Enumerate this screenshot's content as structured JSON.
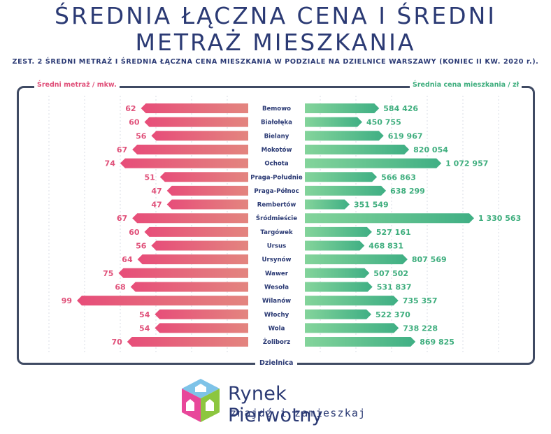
{
  "title_line1": "ŚREDNIA ŁĄCZNA CENA I ŚREDNI",
  "title_line2": "METRAŻ MIESZKANIA",
  "subtitle": "ZEST. 2 ŚREDNI METRAŻ I ŚREDNIA ŁĄCZNA CENA MIESZKANIA W PODZIALE NA DZIELNICE WARSZAWY (KONIEC II KW. 2020 r.).",
  "logo": {
    "name": "Rynek Pierwotny",
    "tagline": "znajdź i zamieszkaj"
  },
  "colors": {
    "area_bar_start": "#e74d79",
    "area_bar_end": "#e3857f",
    "price_bar_start": "#84d49b",
    "price_bar_end": "#3faf84",
    "area_label": "#e0517a",
    "price_label": "#3fae7e",
    "text": "#2b3a74",
    "frame": "#3f4a63"
  },
  "chart_data": {
    "type": "bar",
    "orientation": "horizontal-diverging",
    "left_axis_label": "Średni metraż / mkw.",
    "right_axis_label": "Średnia cena mieszkania / zł",
    "bottom_axis_label": "Dzielnica",
    "grid": true,
    "categories": [
      "Bemowo",
      "Białołęka",
      "Bielany",
      "Mokotów",
      "Ochota",
      "Praga-Południe",
      "Praga-Północ",
      "Rembertów",
      "Śródmieście",
      "Targówek",
      "Ursus",
      "Ursynów",
      "Wawer",
      "Wesoła",
      "Wilanów",
      "Włochy",
      "Wola",
      "Żoliborz"
    ],
    "series": [
      {
        "name": "Średni metraż / mkw.",
        "values": [
          62,
          60,
          56,
          67,
          74,
          51,
          47,
          47,
          67,
          60,
          56,
          64,
          75,
          68,
          99,
          54,
          54,
          70
        ],
        "labels": [
          "62",
          "60",
          "56",
          "67",
          "74",
          "51",
          "47",
          "47",
          "67",
          "60",
          "56",
          "64",
          "75",
          "68",
          "99",
          "54",
          "54",
          "70"
        ]
      },
      {
        "name": "Średnia cena mieszkania / zł",
        "values": [
          584426,
          450755,
          619967,
          820054,
          1072957,
          566863,
          638299,
          351549,
          1330563,
          527161,
          468831,
          807569,
          507502,
          531837,
          735357,
          522370,
          738228,
          869825
        ],
        "labels": [
          "584 426",
          "450 755",
          "619 967",
          "820 054",
          "1 072 957",
          "566 863",
          "638 299",
          "351 549",
          "1 330 563",
          "527 161",
          "468 831",
          "807 569",
          "507 502",
          "531 837",
          "735 357",
          "522 370",
          "738 228",
          "869 825"
        ]
      }
    ]
  }
}
